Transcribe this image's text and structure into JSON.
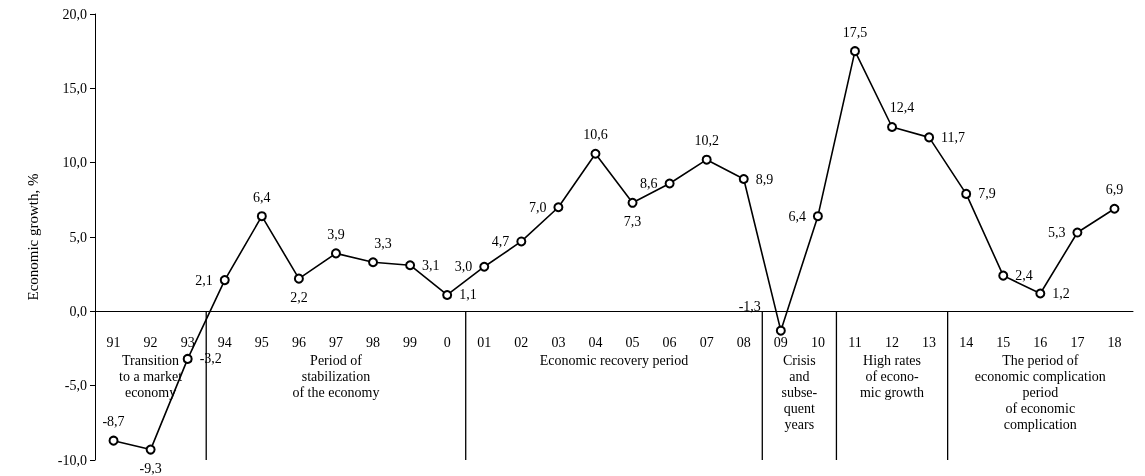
{
  "chart_data": {
    "type": "line",
    "ylabel": "Economic growth, %",
    "categories": [
      "91",
      "92",
      "93",
      "94",
      "95",
      "96",
      "97",
      "98",
      "99",
      "0",
      "01",
      "02",
      "03",
      "04",
      "05",
      "06",
      "07",
      "08",
      "09",
      "10",
      "11",
      "12",
      "13",
      "14",
      "15",
      "16",
      "17",
      "18"
    ],
    "series": [
      {
        "color": "#000000",
        "values": [
          -8.7,
          -9.3,
          -3.2,
          2.1,
          6.4,
          2.2,
          3.9,
          3.3,
          3.1,
          1.1,
          3.0,
          4.7,
          7.0,
          10.6,
          7.3,
          8.6,
          10.2,
          8.9,
          -1.3,
          6.4,
          17.5,
          12.4,
          11.7,
          7.9,
          2.4,
          1.2,
          5.3,
          6.9
        ],
        "value_labels": [
          "-8,7",
          "-9,3",
          "-3,2",
          "2,1",
          "6,4",
          "2,2",
          "3,9",
          "3,3",
          "3,1",
          "1,1",
          "3,0",
          "4,7",
          "7,0",
          "10,6",
          "7,3",
          "8,6",
          "10,2",
          "8,9",
          "-1,3",
          "6,4",
          "17,5",
          "12,4",
          "11,7",
          "7,9",
          "2,4",
          "1,2",
          "5,3",
          "6,9"
        ]
      }
    ],
    "ylim": [
      -10,
      20
    ],
    "yticks": [
      {
        "value": -10,
        "label": "-10,0"
      },
      {
        "value": -5,
        "label": "-5,0"
      },
      {
        "value": 0,
        "label": "0,0"
      },
      {
        "value": 5,
        "label": "5,0"
      },
      {
        "value": 10,
        "label": "10,0"
      },
      {
        "value": 15,
        "label": "15,0"
      },
      {
        "value": 20,
        "label": "20,0"
      }
    ],
    "annotations": [
      "Transition\nto a market\neconomy",
      "Period of\nstabilization\nof the economy",
      "Economic recovery period",
      "Crisis\nand\nsubse-\nquent\nyears",
      "High rates\nof econo-\nmic growth",
      "The period of\neconomic complication\nperiod\nof economic\ncomplication"
    ],
    "grid": false,
    "marker": "circle",
    "line_style": "solid"
  }
}
